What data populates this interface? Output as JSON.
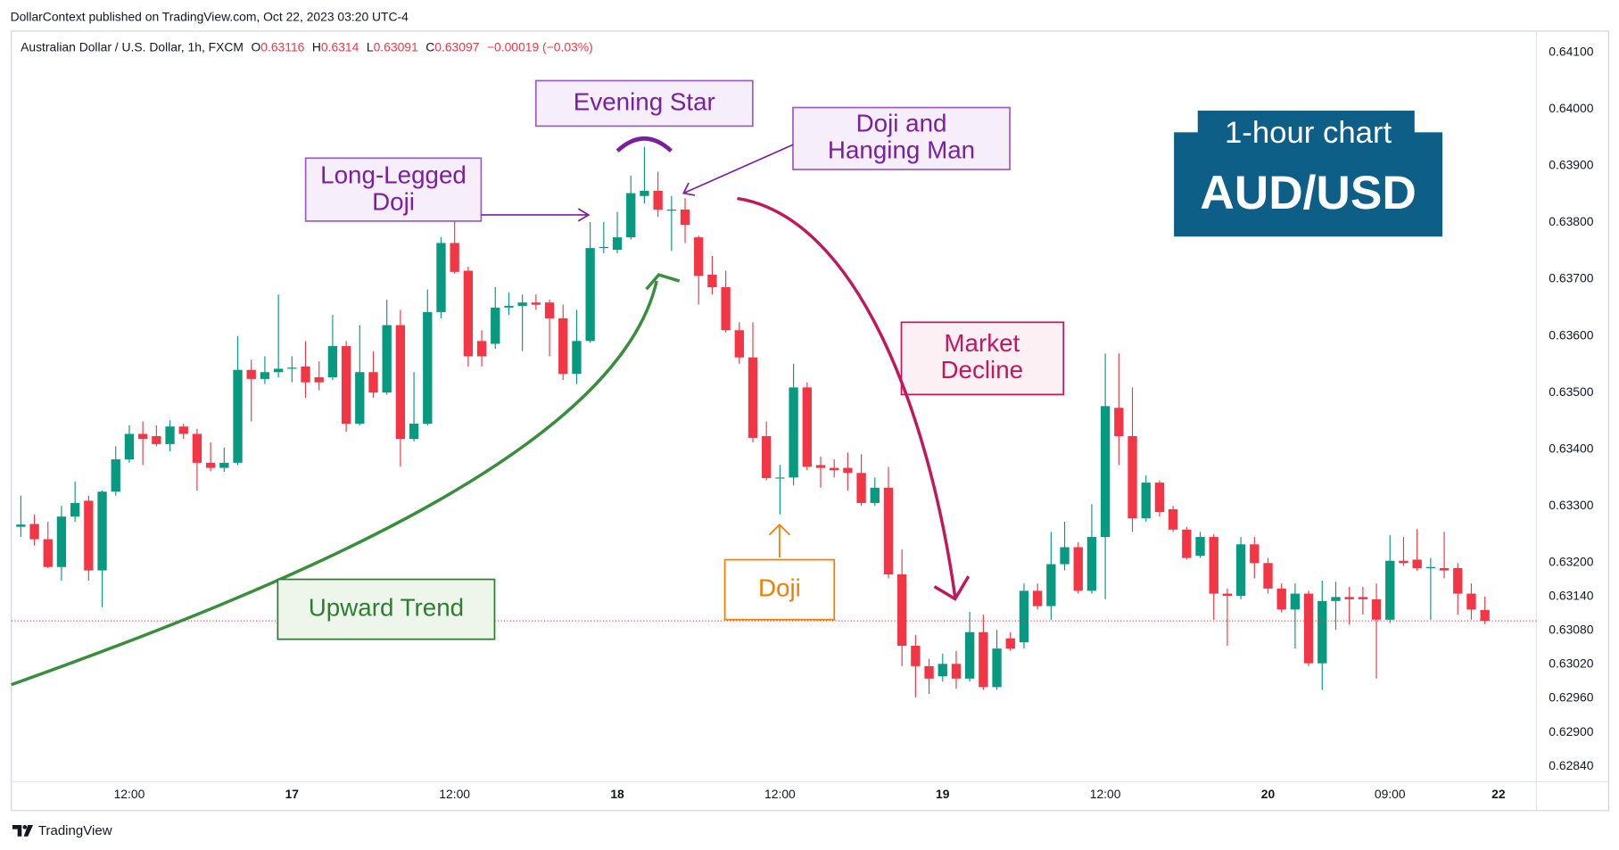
{
  "chart_data": {
    "type": "candlestick",
    "publisher": "DollarContext published on TradingView.com, Oct 22, 2023 03:20 UTC-4",
    "symbol": "Australian Dollar / U.S. Dollar, 1h, FXCM",
    "ohlc_prefixes": [
      "O",
      "H",
      "L",
      "C"
    ],
    "change": "−0.00019 (−0.03%)",
    "brand": "TradingView",
    "badge": {
      "timeframe": "1-hour chart",
      "pair": "AUD/USD"
    },
    "annotations": {
      "evening_star": "Evening Star",
      "doji_hanging_man": [
        "Doji and",
        "Hanging Man"
      ],
      "long_legged_doji": [
        "Long-Legged",
        "Doji"
      ],
      "market_decline": [
        "Market",
        "Decline"
      ],
      "doji": "Doji",
      "upward_trend": "Upward Trend"
    },
    "up_color": "#089981",
    "down_color": "#f23645",
    "price_line": true,
    "open": [
      0.63263,
      0.63268,
      0.63241,
      0.63192,
      0.63281,
      0.63309,
      0.63186,
      0.63325,
      0.63382,
      0.63427,
      0.63423,
      0.63409,
      0.6344,
      0.63427,
      0.63376,
      0.63367,
      0.63376,
      0.6354,
      0.63524,
      0.63536,
      0.63542,
      0.63546,
      0.63527,
      0.63527,
      0.63582,
      0.63445,
      0.63536,
      0.635,
      0.63619,
      0.63418,
      0.63445,
      0.63642,
      0.63764,
      0.63715,
      0.63591,
      0.63586,
      0.6365,
      0.63653,
      0.63659,
      0.63659,
      0.63631,
      0.63533,
      0.63591,
      0.63755,
      0.63752,
      0.63774,
      0.63847,
      0.63856,
      0.63821,
      0.63823,
      0.63774,
      0.63708,
      0.63686,
      0.6361,
      0.63562,
      0.63423,
      0.63349,
      0.6335,
      0.63509,
      0.63372,
      0.63367,
      0.63367,
      0.63358,
      0.63305,
      0.63332,
      0.63179,
      0.63053,
      0.63017,
      0.62999,
      0.63021,
      0.62995,
      0.63077,
      0.6298,
      0.63066,
      0.63059,
      0.6315,
      0.63123,
      0.63197,
      0.63227,
      0.6315,
      0.63245,
      0.63473,
      0.63423,
      0.63278,
      0.63341,
      0.63294,
      0.63258,
      0.63212,
      0.63245,
      0.63145,
      0.63141,
      0.63232,
      0.63199,
      0.63154,
      0.63117,
      0.63145,
      0.63022,
      0.63132,
      0.63139,
      0.63139,
      0.63135,
      0.63099,
      0.63203,
      0.63205,
      0.6319,
      0.6319,
      0.6319,
      0.63145,
      0.63116
    ],
    "high": [
      0.63318,
      0.63285,
      0.63272,
      0.633,
      0.63343,
      0.63318,
      0.63327,
      0.63405,
      0.63442,
      0.63449,
      0.63442,
      0.63451,
      0.63445,
      0.63436,
      0.63412,
      0.63403,
      0.636,
      0.63558,
      0.63564,
      0.63673,
      0.63564,
      0.63591,
      0.63555,
      0.63637,
      0.63591,
      0.63619,
      0.63573,
      0.63664,
      0.63646,
      0.63536,
      0.63682,
      0.63774,
      0.63805,
      0.63722,
      0.6361,
      0.63686,
      0.63677,
      0.63673,
      0.63673,
      0.63664,
      0.63655,
      0.63646,
      0.63801,
      0.63801,
      0.63819,
      0.63883,
      0.63934,
      0.6389,
      0.63847,
      0.63843,
      0.63777,
      0.63741,
      0.63715,
      0.63624,
      0.63624,
      0.63449,
      0.63372,
      0.63551,
      0.63518,
      0.63387,
      0.63382,
      0.63394,
      0.63391,
      0.6335,
      0.63369,
      0.63223,
      0.63072,
      0.6303,
      0.63039,
      0.63044,
      0.63113,
      0.63108,
      0.63081,
      0.63077,
      0.63163,
      0.63163,
      0.63254,
      0.63272,
      0.63236,
      0.63303,
      0.63569,
      0.63569,
      0.63509,
      0.63354,
      0.63345,
      0.633,
      0.63263,
      0.63254,
      0.6325,
      0.63154,
      0.63245,
      0.63245,
      0.63208,
      0.63163,
      0.63163,
      0.6315,
      0.63168,
      0.63166,
      0.63157,
      0.63157,
      0.63163,
      0.63248,
      0.63245,
      0.63259,
      0.63208,
      0.63254,
      0.63199,
      0.63163,
      0.6314
    ],
    "low": [
      0.63245,
      0.6323,
      0.6319,
      0.63168,
      0.63272,
      0.63168,
      0.63121,
      0.63318,
      0.63376,
      0.63372,
      0.63405,
      0.63396,
      0.63418,
      0.63327,
      0.63361,
      0.6336,
      0.63372,
      0.63449,
      0.63515,
      0.63527,
      0.63518,
      0.63491,
      0.63504,
      0.63522,
      0.63431,
      0.63442,
      0.63491,
      0.63496,
      0.63369,
      0.63414,
      0.63442,
      0.63631,
      0.6371,
      0.63546,
      0.63546,
      0.63577,
      0.63637,
      0.63573,
      0.63646,
      0.63564,
      0.63522,
      0.63515,
      0.63588,
      0.63746,
      0.63746,
      0.6377,
      0.63834,
      0.6381,
      0.6375,
      0.63764,
      0.63655,
      0.63673,
      0.63606,
      0.63551,
      0.63412,
      0.63345,
      0.63285,
      0.63336,
      0.63363,
      0.63332,
      0.6335,
      0.63327,
      0.633,
      0.633,
      0.63172,
      0.63017,
      0.62962,
      0.62968,
      0.6299,
      0.62977,
      0.6299,
      0.62975,
      0.62975,
      0.63044,
      0.63048,
      0.63117,
      0.63099,
      0.63186,
      0.63145,
      0.63145,
      0.63135,
      0.63372,
      0.63254,
      0.63272,
      0.63281,
      0.63254,
      0.63205,
      0.63208,
      0.63099,
      0.63053,
      0.63135,
      0.63172,
      0.63145,
      0.63112,
      0.63048,
      0.63017,
      0.62975,
      0.63081,
      0.6309,
      0.63108,
      0.62995,
      0.63093,
      0.63194,
      0.63185,
      0.63099,
      0.63172,
      0.63108,
      0.63099,
      0.63091
    ],
    "close": [
      0.63267,
      0.63241,
      0.63192,
      0.63281,
      0.63305,
      0.63186,
      0.63325,
      0.63382,
      0.63427,
      0.63418,
      0.63409,
      0.6344,
      0.63427,
      0.63376,
      0.63367,
      0.63376,
      0.6354,
      0.63524,
      0.63536,
      0.63542,
      0.63544,
      0.63518,
      0.63518,
      0.63582,
      0.63445,
      0.63536,
      0.635,
      0.63619,
      0.63418,
      0.63445,
      0.63642,
      0.63764,
      0.63713,
      0.63564,
      0.63564,
      0.6365,
      0.63653,
      0.63659,
      0.63655,
      0.63631,
      0.63533,
      0.63591,
      0.63755,
      0.63757,
      0.63774,
      0.63852,
      0.63856,
      0.63823,
      0.63823,
      0.63796,
      0.63706,
      0.63686,
      0.6361,
      0.63562,
      0.6342,
      0.63349,
      0.6335,
      0.63509,
      0.63369,
      0.63367,
      0.63363,
      0.63358,
      0.63305,
      0.63332,
      0.63179,
      0.63053,
      0.63017,
      0.62995,
      0.63021,
      0.62995,
      0.63077,
      0.6298,
      0.63048,
      0.63048,
      0.6315,
      0.63123,
      0.63197,
      0.63227,
      0.6315,
      0.63245,
      0.63476,
      0.63423,
      0.63278,
      0.63341,
      0.63289,
      0.63258,
      0.63208,
      0.63245,
      0.63145,
      0.63141,
      0.63232,
      0.63199,
      0.63154,
      0.63117,
      0.63145,
      0.63022,
      0.63132,
      0.63139,
      0.63135,
      0.63135,
      0.63099,
      0.63203,
      0.63199,
      0.6319,
      0.63192,
      0.63186,
      0.63145,
      0.63117,
      0.63097
    ],
    "xlim": [
      -0.7,
      111.8
    ],
    "xticks": [
      {
        "value": 8,
        "label": "12:00"
      },
      {
        "value": 20,
        "label": "17"
      },
      {
        "value": 32,
        "label": "12:00"
      },
      {
        "value": 44,
        "label": "18"
      },
      {
        "value": 56,
        "label": "12:00"
      },
      {
        "value": 68,
        "label": "19"
      },
      {
        "value": 80,
        "label": "12:00"
      },
      {
        "value": 92,
        "label": "20"
      },
      {
        "value": 101,
        "label": "09:00"
      },
      {
        "value": 109,
        "label": "22"
      }
    ],
    "ylim": [
      0.62813,
      0.64138
    ],
    "yticks": [
      {
        "value": 0.641,
        "label": "0.64100"
      },
      {
        "value": 0.64,
        "label": "0.64000"
      },
      {
        "value": 0.639,
        "label": "0.63900"
      },
      {
        "value": 0.638,
        "label": "0.63800"
      },
      {
        "value": 0.637,
        "label": "0.63700"
      },
      {
        "value": 0.636,
        "label": "0.63600"
      },
      {
        "value": 0.635,
        "label": "0.63500"
      },
      {
        "value": 0.634,
        "label": "0.63400"
      },
      {
        "value": 0.633,
        "label": "0.63300"
      },
      {
        "value": 0.632,
        "label": "0.63200"
      },
      {
        "value": 0.6314,
        "label": "0.63140"
      },
      {
        "value": 0.6308,
        "label": "0.63080"
      },
      {
        "value": 0.6302,
        "label": "0.63020"
      },
      {
        "value": 0.6296,
        "label": "0.62960"
      },
      {
        "value": 0.629,
        "label": "0.62900"
      },
      {
        "value": 0.6284,
        "label": "0.62840"
      }
    ]
  }
}
